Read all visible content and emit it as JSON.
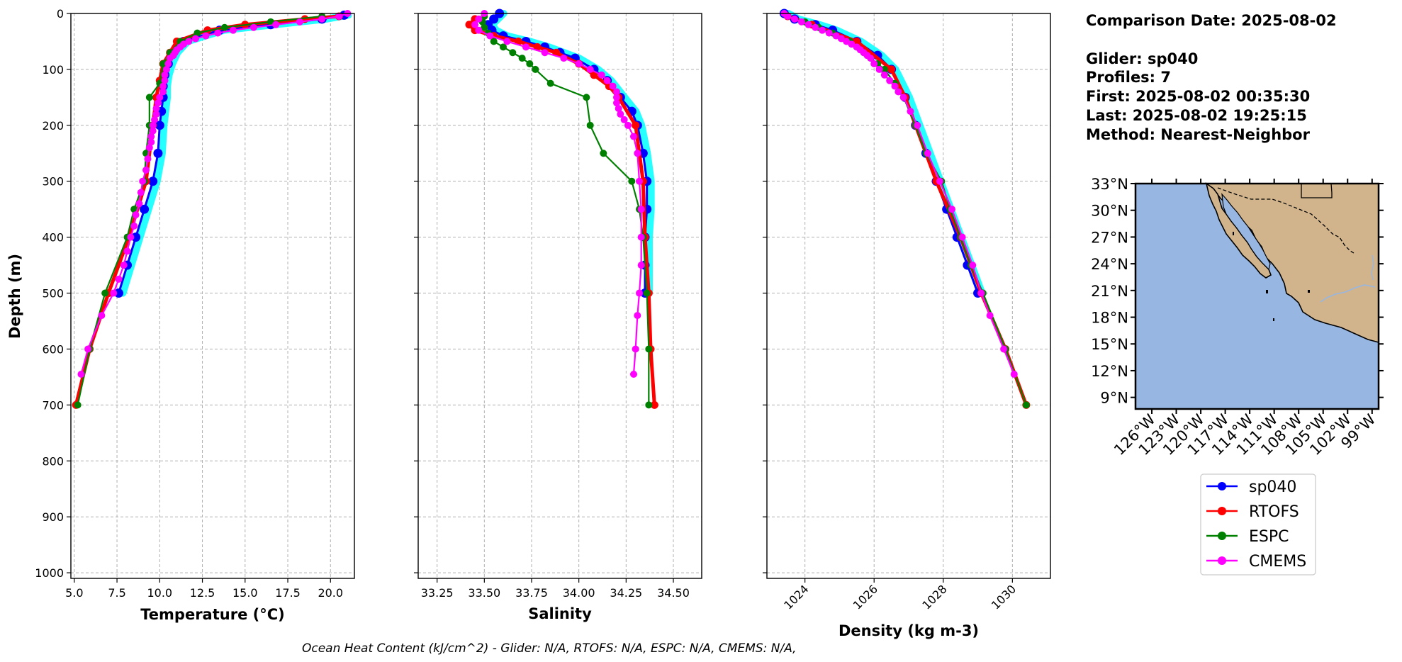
{
  "chart_data": [
    {
      "type": "line",
      "xlabel": "Temperature (°C)",
      "ylabel": "Depth (m)",
      "xlim": [
        4.8,
        21.4
      ],
      "ylim": [
        1010,
        0
      ],
      "x_ticks": [
        "5.0",
        "7.5",
        "10.0",
        "12.5",
        "15.0",
        "17.5",
        "20.0"
      ],
      "y_ticks": [
        "0",
        "100",
        "200",
        "300",
        "400",
        "500",
        "600",
        "700",
        "800",
        "900",
        "1000"
      ],
      "grid": true,
      "series": [
        {
          "name": "sp040",
          "color": "#0000ff",
          "depth": [
            3,
            10,
            20,
            30,
            50,
            70,
            90,
            110,
            130,
            150,
            175,
            200,
            250,
            300,
            350,
            400,
            450,
            500
          ],
          "x": [
            20.8,
            19.5,
            16.5,
            13.5,
            11.4,
            10.8,
            10.5,
            10.3,
            10.2,
            10.2,
            10.1,
            10.0,
            9.9,
            9.6,
            9.1,
            8.6,
            8.1,
            7.6
          ]
        },
        {
          "name": "RTOFS",
          "color": "#ff0000",
          "depth": [
            5,
            10,
            20,
            30,
            50,
            70,
            90,
            120,
            150,
            200,
            300,
            400,
            500,
            600,
            700
          ],
          "x": [
            20.5,
            18.5,
            15.0,
            12.8,
            11.0,
            10.6,
            10.2,
            10.0,
            9.8,
            9.6,
            9.2,
            8.2,
            7.0,
            5.9,
            5.1
          ]
        },
        {
          "name": "ESPC",
          "color": "#008000",
          "depth": [
            5,
            15,
            25,
            35,
            50,
            70,
            90,
            125,
            150,
            200,
            250,
            300,
            350,
            400,
            500,
            600,
            700
          ],
          "x": [
            19.5,
            16.5,
            13.8,
            12.2,
            11.2,
            10.6,
            10.2,
            10.0,
            9.4,
            9.4,
            9.2,
            9.1,
            8.5,
            8.1,
            6.8,
            5.9,
            5.2
          ]
        },
        {
          "name": "CMEMS",
          "color": "#ff00ff",
          "depth": [
            0,
            5,
            10,
            15,
            20,
            25,
            30,
            35,
            40,
            45,
            50,
            55,
            60,
            65,
            70,
            75,
            80,
            90,
            100,
            110,
            120,
            130,
            140,
            150,
            160,
            170,
            180,
            190,
            200,
            210,
            220,
            230,
            240,
            260,
            280,
            300,
            320,
            340,
            360,
            380,
            400,
            425,
            450,
            475,
            500,
            540,
            600,
            645
          ],
          "x": [
            21.0,
            20.5,
            19.5,
            18.2,
            16.8,
            15.5,
            14.3,
            13.4,
            12.7,
            12.1,
            11.7,
            11.4,
            11.2,
            11.0,
            10.9,
            10.8,
            10.6,
            10.5,
            10.4,
            10.3,
            10.3,
            10.2,
            10.2,
            10.0,
            9.9,
            9.8,
            9.8,
            9.7,
            9.6,
            9.6,
            9.5,
            9.5,
            9.4,
            9.3,
            9.2,
            9.0,
            8.9,
            8.8,
            8.6,
            8.5,
            8.3,
            8.1,
            7.9,
            7.6,
            7.3,
            6.6,
            5.8,
            5.4
          ]
        }
      ]
    },
    {
      "type": "line",
      "xlabel": "Salinity",
      "ylim": [
        1010,
        0
      ],
      "xlim": [
        33.15,
        34.65
      ],
      "x_ticks": [
        "33.25",
        "33.50",
        "33.75",
        "34.00",
        "34.25",
        "34.50"
      ],
      "grid": true,
      "series": [
        {
          "name": "sp040",
          "color": "#0000ff",
          "depth": [
            0,
            10,
            20,
            30,
            40,
            50,
            60,
            70,
            80,
            100,
            120,
            150,
            175,
            200,
            250,
            300,
            350,
            400,
            450,
            500
          ],
          "x": [
            33.58,
            33.55,
            33.52,
            33.54,
            33.6,
            33.72,
            33.82,
            33.9,
            33.98,
            34.08,
            34.15,
            34.22,
            34.28,
            34.31,
            34.34,
            34.36,
            34.36,
            34.35,
            34.35,
            34.35
          ]
        },
        {
          "name": "RTOFS",
          "color": "#ff0000",
          "depth": [
            10,
            20,
            30,
            40,
            50,
            60,
            70,
            90,
            110,
            130,
            150,
            200,
            300,
            400,
            500,
            600,
            700
          ],
          "x": [
            33.45,
            33.42,
            33.45,
            33.55,
            33.68,
            33.78,
            33.88,
            34.0,
            34.08,
            34.16,
            34.21,
            34.3,
            34.34,
            34.35,
            34.37,
            34.38,
            34.4
          ]
        },
        {
          "name": "ESPC",
          "color": "#008000",
          "depth": [
            5,
            15,
            25,
            35,
            50,
            60,
            70,
            80,
            90,
            100,
            125,
            150,
            200,
            250,
            300,
            350,
            400,
            500,
            600,
            700
          ],
          "x": [
            33.5,
            33.49,
            33.5,
            33.52,
            33.55,
            33.6,
            33.65,
            33.7,
            33.74,
            33.77,
            33.85,
            34.04,
            34.06,
            34.13,
            34.28,
            34.32,
            34.34,
            34.36,
            34.37,
            34.37
          ]
        },
        {
          "name": "CMEMS",
          "color": "#ff00ff",
          "depth": [
            0,
            10,
            20,
            30,
            40,
            50,
            60,
            70,
            80,
            90,
            100,
            110,
            120,
            130,
            140,
            150,
            160,
            170,
            180,
            190,
            200,
            220,
            250,
            300,
            350,
            400,
            450,
            500,
            540,
            600,
            645
          ],
          "x": [
            33.5,
            33.47,
            33.45,
            33.47,
            33.53,
            33.62,
            33.72,
            33.82,
            33.92,
            34.0,
            34.06,
            34.12,
            34.15,
            34.18,
            34.2,
            34.2,
            34.2,
            34.21,
            34.22,
            34.24,
            34.26,
            34.29,
            34.31,
            34.32,
            34.33,
            34.33,
            34.33,
            34.32,
            34.31,
            34.3,
            34.29
          ]
        }
      ]
    },
    {
      "type": "line",
      "xlabel": "Density (kg m-3)",
      "ylim": [
        1010,
        0
      ],
      "xlim": [
        1022.9,
        1031.1
      ],
      "x_ticks": [
        "1024",
        "1026",
        "1028",
        "1030"
      ],
      "grid": true,
      "series": [
        {
          "name": "sp040",
          "color": "#0000ff",
          "depth": [
            0,
            10,
            20,
            30,
            50,
            75,
            100,
            150,
            200,
            250,
            300,
            350,
            400,
            450,
            500
          ],
          "x": [
            1023.4,
            1023.7,
            1024.3,
            1024.8,
            1025.5,
            1026.1,
            1026.5,
            1026.9,
            1027.2,
            1027.5,
            1027.8,
            1028.1,
            1028.4,
            1028.7,
            1029.0
          ]
        },
        {
          "name": "RTOFS",
          "color": "#ff0000",
          "depth": [
            5,
            20,
            50,
            100,
            150,
            200,
            300,
            400,
            500,
            600,
            700
          ],
          "x": [
            1023.5,
            1024.2,
            1025.5,
            1026.5,
            1026.9,
            1027.2,
            1027.8,
            1028.5,
            1029.1,
            1029.8,
            1030.4
          ]
        },
        {
          "name": "ESPC",
          "color": "#008000",
          "depth": [
            5,
            15,
            25,
            35,
            50,
            60,
            70,
            80,
            90,
            100,
            125,
            150,
            200,
            250,
            300,
            350,
            400,
            450,
            500,
            600,
            700
          ],
          "x": [
            1023.5,
            1024.0,
            1024.4,
            1024.8,
            1025.3,
            1025.5,
            1025.7,
            1025.9,
            1026.1,
            1026.3,
            1026.6,
            1026.85,
            1027.2,
            1027.5,
            1027.95,
            1028.2,
            1028.5,
            1028.8,
            1029.15,
            1029.8,
            1030.4
          ]
        },
        {
          "name": "CMEMS",
          "color": "#ff00ff",
          "depth": [
            0,
            5,
            10,
            15,
            20,
            25,
            30,
            35,
            40,
            45,
            50,
            55,
            60,
            65,
            70,
            75,
            80,
            90,
            100,
            110,
            120,
            130,
            140,
            150,
            175,
            200,
            250,
            300,
            350,
            400,
            450,
            500,
            540,
            600,
            645
          ],
          "x": [
            1023.4,
            1023.5,
            1023.7,
            1023.9,
            1024.1,
            1024.3,
            1024.5,
            1024.7,
            1024.9,
            1025.05,
            1025.2,
            1025.35,
            1025.5,
            1025.6,
            1025.7,
            1025.8,
            1025.9,
            1026.0,
            1026.15,
            1026.3,
            1026.45,
            1026.6,
            1026.7,
            1026.85,
            1027.05,
            1027.25,
            1027.55,
            1027.9,
            1028.25,
            1028.55,
            1028.85,
            1029.1,
            1029.35,
            1029.75,
            1030.05
          ]
        }
      ]
    }
  ],
  "info": {
    "comparison_date": "Comparison Date: 2025-08-02",
    "glider": "Glider: sp040",
    "profiles": "Profiles: 7",
    "first": "First: 2025-08-02 00:35:30",
    "last": "Last: 2025-08-02 19:25:15",
    "method": "Method: Nearest-Neighbor"
  },
  "map": {
    "lat_ticks": [
      "33°N",
      "30°N",
      "27°N",
      "24°N",
      "21°N",
      "18°N",
      "15°N",
      "12°N",
      "9°N"
    ],
    "lon_ticks": [
      "126°W",
      "123°W",
      "120°W",
      "117°W",
      "114°W",
      "111°W",
      "108°W",
      "105°W",
      "102°W",
      "99°W"
    ],
    "ocean_color": "#97b6e1",
    "land_color": "#d1b48c"
  },
  "legend": [
    {
      "label": "sp040",
      "color": "#0000ff"
    },
    {
      "label": "RTOFS",
      "color": "#ff0000"
    },
    {
      "label": "ESPC",
      "color": "#008000"
    },
    {
      "label": "CMEMS",
      "color": "#ff00ff"
    }
  ],
  "footer": "Ocean Heat Content (kJ/cm^2) - Glider: N/A,  RTOFS: N/A,  ESPC: N/A,  CMEMS: N/A,"
}
